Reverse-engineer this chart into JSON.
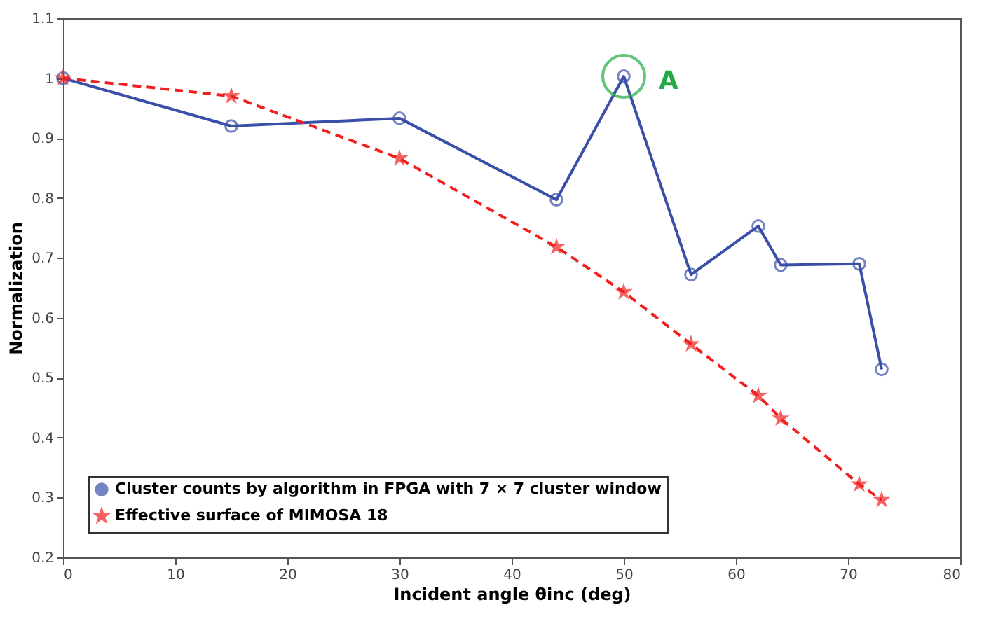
{
  "chart_data": {
    "type": "line",
    "xlabel": "Incident angle θinc (deg)",
    "ylabel": "Normalization",
    "xlim": [
      0,
      80
    ],
    "xticks": [
      0,
      10,
      20,
      30,
      40,
      50,
      60,
      70,
      80
    ],
    "ylim": [
      0.2,
      1.1
    ],
    "yticks": [
      0.2,
      0.3,
      0.4,
      0.5,
      0.6,
      0.7,
      0.8,
      0.9,
      1,
      1.1
    ],
    "grid": false,
    "legend": "bottom left",
    "series": [
      {
        "name": "Cluster counts by algorithm in FPGA with 7 × 7 cluster window",
        "color": "#3a50a8",
        "marker": "circle",
        "line_style": "solid",
        "x": [
          0,
          15,
          30,
          44,
          50,
          56,
          62,
          64,
          71,
          73
        ],
        "values": [
          1.0,
          0.92,
          0.933,
          0.797,
          1.003,
          0.672,
          0.753,
          0.688,
          0.69,
          0.514
        ]
      },
      {
        "name": "Effective surface of MIMOSA 18",
        "color": "#f02020",
        "marker": "star",
        "line_style": "dashed",
        "x": [
          0,
          15,
          30,
          44,
          50,
          56,
          62,
          64,
          71,
          73
        ],
        "values": [
          1.0,
          0.97,
          0.866,
          0.718,
          0.643,
          0.556,
          0.47,
          0.432,
          0.322,
          0.296
        ]
      }
    ],
    "annotations": [
      {
        "text": "A",
        "x": 50,
        "y": 1.003
      }
    ]
  }
}
